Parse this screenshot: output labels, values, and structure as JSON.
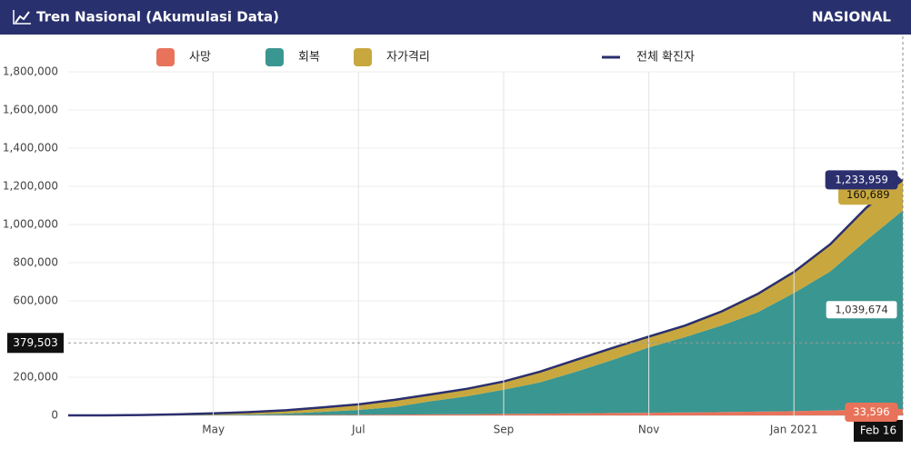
{
  "chart_data": {
    "type": "area",
    "title": "Tren Nasional (Akumulasi Data)",
    "header_right": "NASIONAL",
    "stacked": true,
    "grid": true,
    "categories": [
      null,
      null,
      null,
      null,
      "May",
      null,
      null,
      null,
      "Jul",
      null,
      null,
      null,
      "Sep",
      null,
      null,
      null,
      "Nov",
      null,
      null,
      null,
      "Jan 2021",
      null,
      null,
      "Feb 16"
    ],
    "series": [
      {
        "name": "사망",
        "color": "#e8735a",
        "values": [
          0,
          5,
          157,
          469,
          800,
          1148,
          1613,
          2276,
          2876,
          3873,
          5193,
          6150,
          7616,
          9100,
          10856,
          12268,
          13943,
          15296,
          17199,
          19390,
          22138,
          25767,
          30277,
          33596
        ],
        "value_labels": [
          null,
          null,
          null,
          null,
          null,
          null,
          null,
          null,
          null,
          null,
          null,
          null,
          null,
          null,
          null,
          null,
          null,
          null,
          null,
          null,
          null,
          null,
          null,
          "33,596"
        ]
      },
      {
        "name": "회복",
        "color": "#3a9690",
        "values": [
          0,
          8,
          103,
          548,
          1591,
          3911,
          7637,
          16243,
          25595,
          40345,
          68975,
          94458,
          127083,
          163524,
          218487,
          278396,
          341942,
          394840,
          453193,
          520764,
          618873,
          728217,
          887594,
          1039674
        ],
        "value_labels": [
          null,
          null,
          null,
          null,
          null,
          null,
          null,
          null,
          null,
          null,
          null,
          null,
          null,
          null,
          null,
          null,
          null,
          null,
          null,
          null,
          null,
          null,
          null,
          "1,039,674"
        ]
      },
      {
        "name": "자가격리",
        "color": "#c8a83e",
        "values": [
          2,
          121,
          1417,
          4499,
          8160,
          11966,
          17690,
          22912,
          29299,
          37450,
          35768,
          38941,
          42872,
          56369,
          61839,
          62797,
          56899,
          60512,
          73583,
          96000,
          110259,
          142658,
          171437,
          160689
        ],
        "value_labels": [
          null,
          null,
          null,
          null,
          null,
          null,
          null,
          null,
          null,
          null,
          null,
          null,
          null,
          null,
          null,
          null,
          null,
          null,
          null,
          null,
          null,
          null,
          null,
          "160,689"
        ]
      },
      {
        "name": "전체 확진자",
        "type": "line",
        "color": "#2b2f6e",
        "values": [
          2,
          134,
          1677,
          5516,
          10551,
          17025,
          26940,
          41431,
          57770,
          81668,
          109936,
          139549,
          177571,
          228993,
          291182,
          353461,
          412784,
          470648,
          543975,
          636154,
          751270,
          896642,
          1089308,
          1233959
        ],
        "value_labels": [
          null,
          null,
          null,
          null,
          null,
          null,
          null,
          null,
          null,
          null,
          null,
          null,
          null,
          null,
          null,
          null,
          null,
          null,
          null,
          null,
          null,
          null,
          null,
          "1,233,959"
        ]
      }
    ],
    "ylim": [
      0,
      1800000
    ],
    "yticks": [
      0,
      {
        "value": 200000,
        "label": "200,000"
      },
      {
        "value": 400000,
        "label": "400,000"
      },
      {
        "value": 600000,
        "label": "600,000"
      },
      {
        "value": 800000,
        "label": "800,000"
      },
      {
        "value": 1000000,
        "label": "1,000,000"
      },
      {
        "value": 1200000,
        "label": "1,200,000"
      },
      {
        "value": 1400000,
        "label": "1,400,000"
      },
      {
        "value": 1600000,
        "label": "1,600,000"
      },
      {
        "value": 1800000,
        "label": "1,800,000"
      }
    ],
    "crosshair_y": {
      "value": 379503,
      "label": "379,503"
    }
  }
}
